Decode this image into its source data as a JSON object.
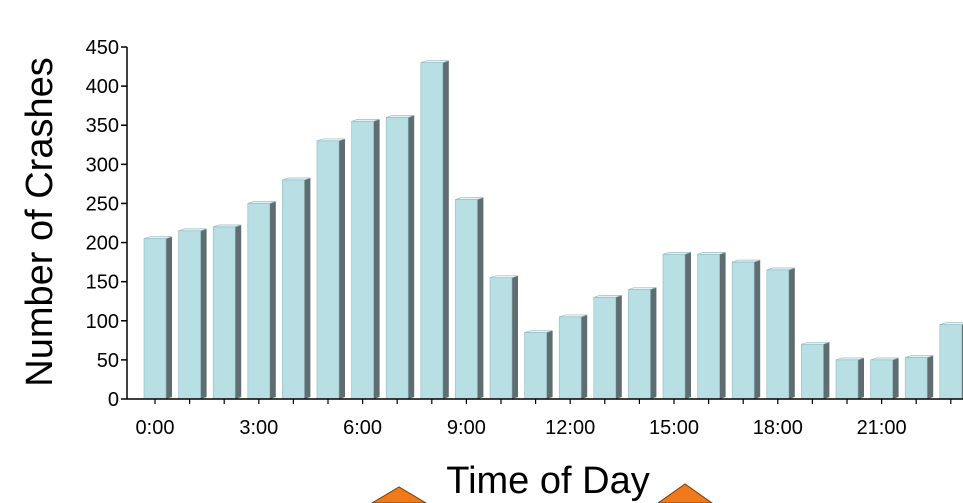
{
  "chart_data": {
    "type": "bar",
    "title": "",
    "xlabel": "Time of Day",
    "ylabel": "Number of Crashes",
    "ylim": [
      0,
      450
    ],
    "yticks": [
      0,
      50,
      100,
      150,
      200,
      250,
      300,
      350,
      400,
      450
    ],
    "categories": [
      "0:00",
      "1:00",
      "2:00",
      "3:00",
      "4:00",
      "5:00",
      "6:00",
      "7:00",
      "8:00",
      "9:00",
      "10:00",
      "11:00",
      "12:00",
      "13:00",
      "14:00",
      "15:00",
      "16:00",
      "17:00",
      "18:00",
      "19:00",
      "20:00",
      "21:00",
      "22:00",
      "23:00"
    ],
    "x_tick_labels": [
      "0:00",
      "3:00",
      "6:00",
      "9:00",
      "12:00",
      "15:00",
      "18:00",
      "21:00"
    ],
    "values": [
      205,
      215,
      220,
      250,
      280,
      330,
      355,
      360,
      430,
      255,
      155,
      85,
      105,
      130,
      140,
      185,
      185,
      175,
      165,
      70,
      50,
      50,
      53,
      95
    ],
    "grid": false,
    "legend": "none",
    "colors": {
      "bar_front": "#b8dfe4",
      "bar_side": "#5f6d70",
      "bar_top": "#e4f3f5",
      "bar_edge": "#8fb8bf",
      "axis": "#000000",
      "arrow": "#f07a1a"
    }
  }
}
